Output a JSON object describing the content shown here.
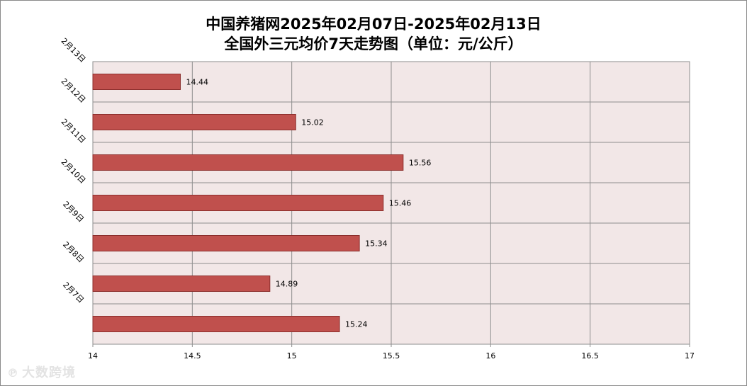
{
  "title_line1": "中国养猪网2025年02月07日-2025年02月13日",
  "title_line2": "全国外三元均价7天走势图（单位：元/公斤）",
  "watermark": {
    "logo_icon": "dashuju-logo-icon",
    "text": "大数跨境"
  },
  "colors": {
    "bar": "#c0504d",
    "bar_border": "#8c2f2d",
    "plot_bg": "#f2e7e7",
    "grid": "#8e8e8e"
  },
  "chart_data": {
    "type": "bar",
    "orientation": "horizontal",
    "title": "中国养猪网2025年02月07日-2025年02月13日 全国外三元均价7天走势图（单位：元/公斤）",
    "categories": [
      "2月13日",
      "2月12日",
      "2月11日",
      "2月10日",
      "2月9日",
      "2月8日",
      "2月7日"
    ],
    "values": [
      14.44,
      15.02,
      15.56,
      15.46,
      15.34,
      14.89,
      15.24
    ],
    "data_labels": [
      "14.44",
      "15.02",
      "15.56",
      "15.46",
      "15.34",
      "14.89",
      "15.24"
    ],
    "xlim": [
      14,
      17
    ],
    "xticks": [
      14,
      14.5,
      15,
      15.5,
      16,
      16.5,
      17
    ],
    "xtick_labels": [
      "14",
      "14.5",
      "15",
      "15.5",
      "16",
      "16.5",
      "17"
    ],
    "xlabel": "",
    "ylabel": "",
    "grid": true,
    "legend": "none"
  }
}
